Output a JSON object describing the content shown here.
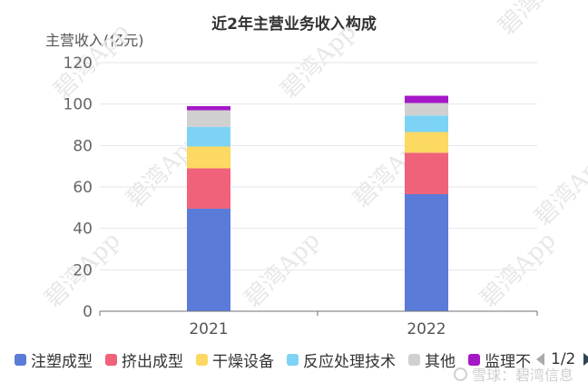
{
  "chart_data": {
    "type": "bar",
    "stacked": true,
    "title": "近2年主营业务收入构成",
    "ylabel": "主营收入(亿元)",
    "xlabel": "",
    "categories": [
      "2021",
      "2022"
    ],
    "ylim": [
      0,
      120
    ],
    "yticks": [
      0,
      20,
      40,
      60,
      80,
      100,
      120
    ],
    "grid": true,
    "legend_position": "bottom",
    "series": [
      {
        "name": "注塑成型",
        "color": "#5b7bd9",
        "values": [
          49.5,
          56.5
        ]
      },
      {
        "name": "挤出成型",
        "color": "#f0627a",
        "values": [
          19.5,
          20.0
        ]
      },
      {
        "name": "干燥设备",
        "color": "#fbd962",
        "values": [
          10.5,
          10.0
        ]
      },
      {
        "name": "反应处理技术",
        "color": "#7dd3f5",
        "values": [
          9.5,
          8.0
        ]
      },
      {
        "name": "其他",
        "color": "#d0d0d0",
        "values": [
          8.0,
          6.0
        ]
      },
      {
        "name": "监理不",
        "color": "#a518c8",
        "values": [
          2.0,
          3.5
        ]
      }
    ]
  },
  "legend": {
    "items": [
      "注塑成型",
      "挤出成型",
      "干燥设备",
      "反应处理技术",
      "其他",
      "监理不"
    ],
    "page_indicator": "1/2"
  },
  "watermark": {
    "text": "雪球：碧湾信息",
    "diagonal_text": "碧湾App"
  }
}
